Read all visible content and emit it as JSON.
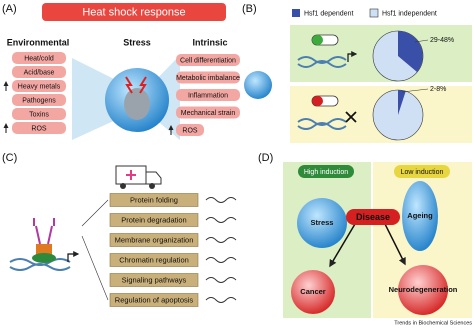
{
  "panel_a": {
    "label": "(A)",
    "title": "Heat shock response",
    "environmental": {
      "heading": "Environmental",
      "items": [
        "Heat/cold",
        "Acid/base",
        "Heavy metals",
        "Pathogens",
        "Toxins",
        "ROS"
      ]
    },
    "stress": "Stress",
    "intrinsic": {
      "heading": "Intrinsic",
      "items": [
        "Cell differentiation",
        "Metabolic imbalance",
        "Inflammation",
        "Mechanical strain",
        "ROS"
      ]
    }
  },
  "panel_b": {
    "label": "(B)",
    "legend": [
      "Hsf1 dependent",
      "Hsf1 independent"
    ],
    "annotations": [
      "29-48%",
      "2-8%"
    ]
  },
  "panel_c": {
    "label": "(C)",
    "functions": [
      "Protein folding",
      "Protein degradation",
      "Membrane organization",
      "Chromatin regulation",
      "Signaling pathways",
      "Regulation of apoptosis"
    ]
  },
  "panel_d": {
    "label": "(D)",
    "high_induction": "High induction",
    "low_induction": "Low induction",
    "nodes": [
      "Stress",
      "Ageing",
      "Disease",
      "Cancer",
      "Neurodegeneration"
    ]
  },
  "footer": "Trends in Biochemical Sciences"
}
